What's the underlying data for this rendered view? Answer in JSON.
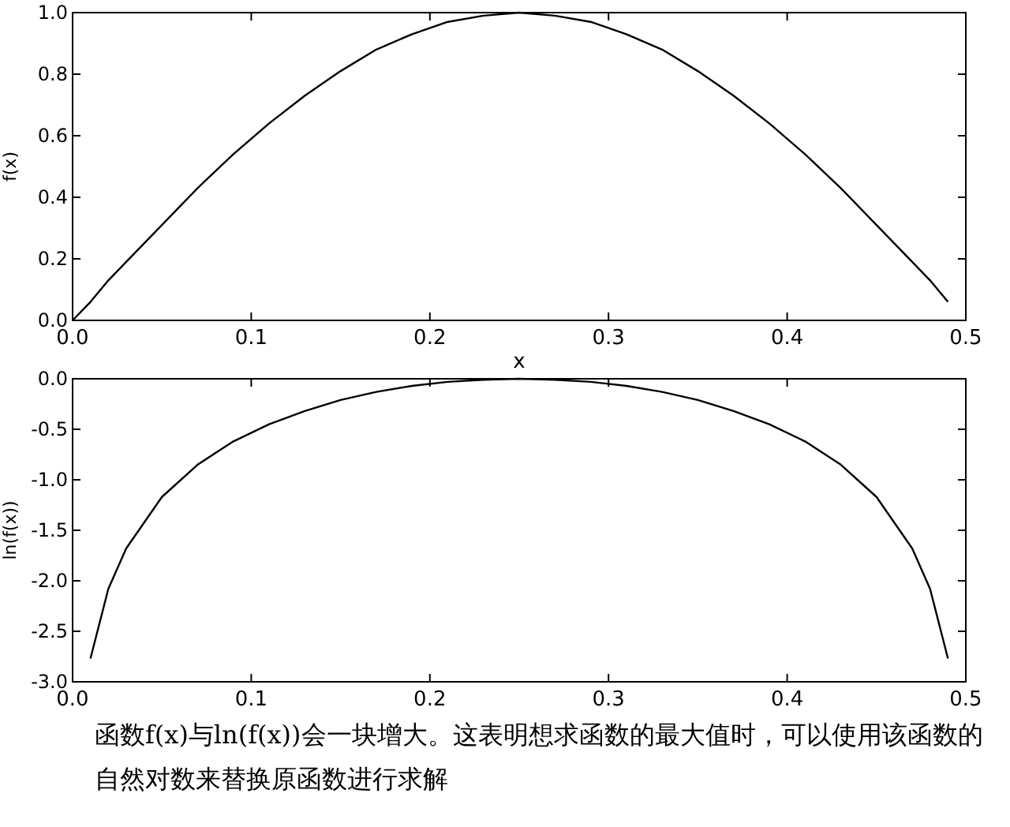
{
  "chart_data": [
    {
      "type": "line",
      "xlabel": "x",
      "ylabel": "f(x)",
      "xlim": [
        0,
        0.5
      ],
      "ylim": [
        0,
        1
      ],
      "xticks": [
        {
          "value": 0,
          "label": "0.0"
        },
        0.1,
        0.2,
        0.3,
        0.4,
        0.5
      ],
      "yticks": [
        {
          "value": 0,
          "label": "0.0"
        },
        0.2,
        0.4,
        0.6,
        0.8,
        {
          "value": 1,
          "label": "1.0"
        }
      ],
      "x": [
        0,
        0.01,
        0.02,
        0.03,
        0.05,
        0.07,
        0.09,
        0.11,
        0.13,
        0.15,
        0.17,
        0.19,
        0.21,
        0.23,
        0.25,
        0.27,
        0.29,
        0.31,
        0.33,
        0.35,
        0.37,
        0.39,
        0.41,
        0.43,
        0.45,
        0.47,
        0.48,
        0.49
      ],
      "series": [
        {
          "color": "#000000",
          "values": [
            0,
            0.06,
            0.13,
            0.19,
            0.31,
            0.43,
            0.54,
            0.64,
            0.73,
            0.81,
            0.88,
            0.93,
            0.97,
            0.99,
            1.0,
            0.99,
            0.97,
            0.93,
            0.88,
            0.81,
            0.73,
            0.64,
            0.54,
            0.43,
            0.31,
            0.19,
            0.13,
            0.06
          ]
        }
      ]
    },
    {
      "type": "line",
      "ylabel": "ln(f(x))",
      "xlim": [
        0,
        0.5
      ],
      "ylim": [
        -3,
        0
      ],
      "xticks": [
        {
          "value": 0,
          "label": "0.0"
        },
        0.1,
        0.2,
        0.3,
        0.4,
        0.5
      ],
      "yticks": [
        {
          "value": -3,
          "label": "-3.0"
        },
        -2.5,
        {
          "value": -2,
          "label": "-2.0"
        },
        -1.5,
        {
          "value": -1,
          "label": "-1.0"
        },
        -0.5,
        {
          "value": 0,
          "label": "0.0"
        }
      ],
      "x": [
        0.01,
        0.02,
        0.03,
        0.05,
        0.07,
        0.09,
        0.11,
        0.13,
        0.15,
        0.17,
        0.19,
        0.21,
        0.23,
        0.25,
        0.27,
        0.29,
        0.31,
        0.33,
        0.35,
        0.37,
        0.39,
        0.41,
        0.43,
        0.45,
        0.47,
        0.48,
        0.49
      ],
      "series": [
        {
          "color": "#000000",
          "values": [
            -2.77,
            -2.08,
            -1.68,
            -1.17,
            -0.85,
            -0.62,
            -0.45,
            -0.32,
            -0.21,
            -0.13,
            -0.07,
            -0.03,
            -0.01,
            0,
            -0.01,
            -0.03,
            -0.07,
            -0.13,
            -0.21,
            -0.32,
            -0.45,
            -0.62,
            -0.85,
            -1.17,
            -1.68,
            -2.08,
            -2.77
          ]
        }
      ],
      "annotations": [
        "函数f(x)与ln(f(x))会一块增大。这表明想求函数的最大值时，可以使用该函数的自然对数来替换原函数进行求解"
      ]
    }
  ]
}
